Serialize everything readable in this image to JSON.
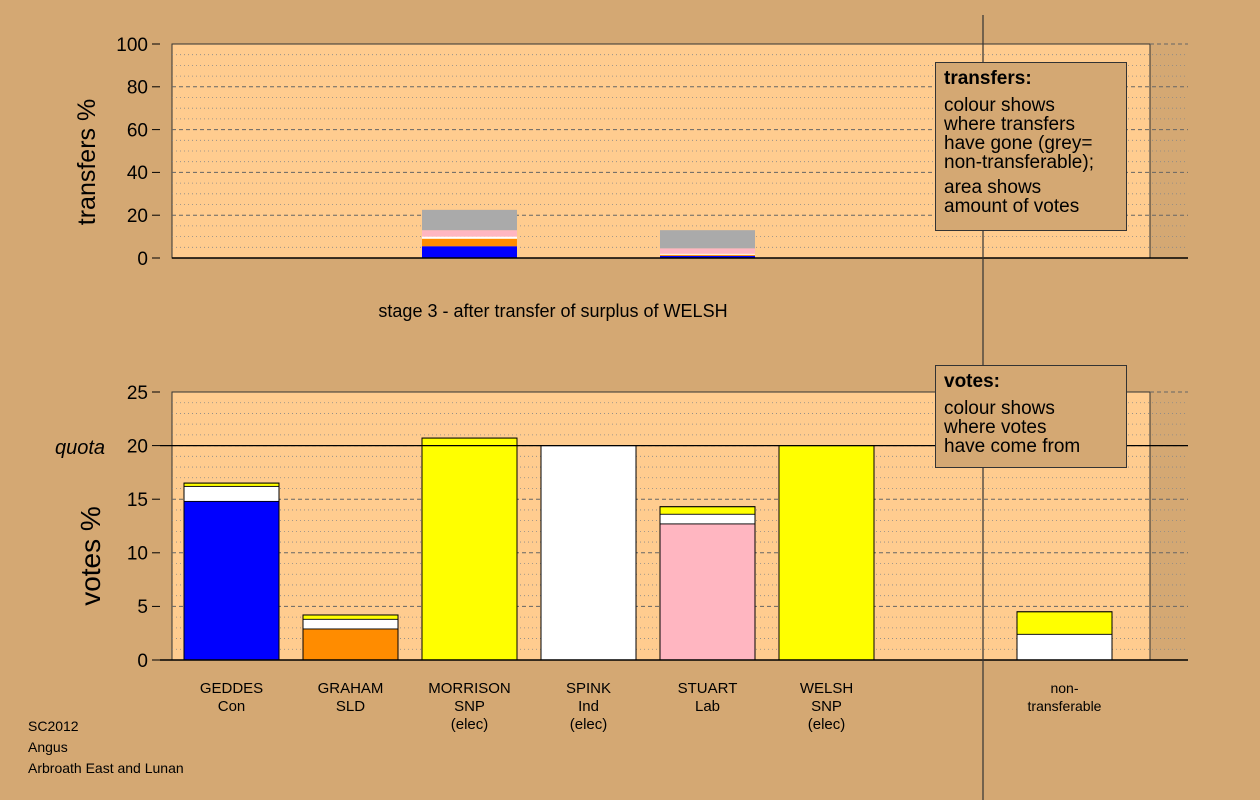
{
  "chart_data": [
    {
      "type": "bar",
      "stacked": true,
      "ylabel": "transfers %",
      "ylim": [
        0,
        100
      ],
      "yticks": [
        "0",
        "20",
        "40",
        "60",
        "80",
        "100"
      ],
      "caption": "stage 3 - after transfer of surplus of WELSH",
      "grid": true,
      "categories": [
        "GEDDES Con",
        "GRAHAM SLD",
        "MORRISON SNP (elec)",
        "SPINK Ind (elec)",
        "STUART Lab",
        "WELSH SNP (elec)",
        "non-transferable"
      ],
      "series": [
        {
          "color": "#0000ff",
          "values": [
            0,
            0,
            5.5,
            0,
            1.0,
            0,
            0
          ]
        },
        {
          "color": "#ff8c00",
          "values": [
            0,
            0,
            3.5,
            0,
            0.5,
            0,
            0
          ]
        },
        {
          "color": "#ffffff",
          "values": [
            0,
            0,
            1.0,
            0,
            0.5,
            0,
            0
          ]
        },
        {
          "color": "#ffb6c1",
          "values": [
            0,
            0,
            3.0,
            0,
            2.5,
            0,
            0
          ]
        },
        {
          "color": "#aaaaaa",
          "values": [
            0,
            0,
            9.5,
            0,
            8.5,
            0,
            0
          ]
        }
      ],
      "legend": {
        "title": "transfers:",
        "lines1": [
          "colour shows",
          "where transfers",
          "have gone (grey=",
          "non-transferable);"
        ],
        "lines2": [
          "area shows",
          "amount of votes"
        ]
      }
    },
    {
      "type": "bar",
      "stacked": true,
      "ylabel": "votes %",
      "ylim": [
        0,
        25
      ],
      "yticks": [
        "0",
        "5",
        "10",
        "15",
        "20",
        "25"
      ],
      "quota_label": "quota",
      "quota": 20,
      "grid": true,
      "categories": [
        "GEDDES Con",
        "GRAHAM SLD",
        "MORRISON SNP (elec)",
        "SPINK Ind (elec)",
        "STUART Lab",
        "WELSH SNP (elec)",
        "non-transferable"
      ],
      "series": [
        {
          "color": "#0000ff",
          "values": [
            14.8,
            0,
            0,
            0,
            0,
            0,
            0
          ]
        },
        {
          "color": "#ff8c00",
          "values": [
            0,
            2.9,
            0,
            0,
            0,
            0,
            0
          ]
        },
        {
          "color": "#ffb6c1",
          "values": [
            0,
            0,
            0,
            0,
            12.7,
            0,
            0
          ]
        },
        {
          "color": "#ffffff",
          "values": [
            1.4,
            0.9,
            0,
            20.0,
            0.9,
            0,
            2.4
          ]
        },
        {
          "color": "#ffff00",
          "values": [
            0.3,
            0.4,
            20.7,
            0,
            0.7,
            20.0,
            2.1
          ]
        }
      ],
      "legend": {
        "title": "votes:",
        "lines1": [
          "colour shows",
          "where votes",
          "have come from"
        ]
      }
    }
  ],
  "labels": [
    [
      "GEDDES",
      "Con"
    ],
    [
      "GRAHAM",
      "SLD"
    ],
    [
      "MORRISON",
      "SNP",
      "(elec)"
    ],
    [
      "SPINK",
      "Ind",
      "(elec)"
    ],
    [
      "STUART",
      "Lab"
    ],
    [
      "WELSH",
      "SNP",
      "(elec)"
    ],
    [
      "non-",
      "transferable"
    ]
  ],
  "footer": {
    "line1": "SC2012",
    "line2": "Angus",
    "line3": "Arbroath East and Lunan"
  }
}
